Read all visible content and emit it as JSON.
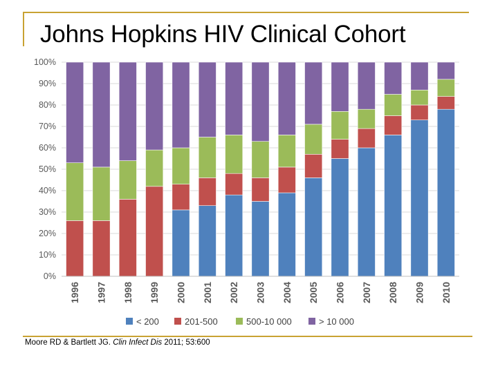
{
  "slide": {
    "title": "Johns Hopkins HIV Clinical Cohort",
    "reference_authors": "Moore RD & Bartlett JG. ",
    "reference_journal": "Clin Infect Dis",
    "reference_details": " 2011; 53:600"
  },
  "colors": {
    "rule": "#c8a232",
    "series": [
      "#4f81bd",
      "#c0504d",
      "#9bbb59",
      "#8064a2"
    ]
  },
  "chart_data": {
    "type": "bar",
    "stacked": true,
    "title": "",
    "xlabel": "",
    "ylabel": "",
    "ylim": [
      0,
      100
    ],
    "y_ticks": [
      "0%",
      "10%",
      "20%",
      "30%",
      "40%",
      "50%",
      "60%",
      "70%",
      "80%",
      "90%",
      "100%"
    ],
    "categories": [
      "1996",
      "1997",
      "1998",
      "1999",
      "2000",
      "2001",
      "2002",
      "2003",
      "2004",
      "2005",
      "2006",
      "2007",
      "2008",
      "2009",
      "2010"
    ],
    "series": [
      {
        "name": "< 200",
        "values": [
          0,
          0,
          0,
          0,
          31,
          33,
          38,
          35,
          39,
          46,
          55,
          60,
          66,
          73,
          78
        ]
      },
      {
        "name": "201-500",
        "values": [
          26,
          26,
          36,
          42,
          12,
          13,
          10,
          11,
          12,
          11,
          9,
          9,
          9,
          7,
          6
        ]
      },
      {
        "name": "500-10 000",
        "values": [
          27,
          25,
          18,
          17,
          17,
          19,
          18,
          17,
          15,
          14,
          13,
          9,
          10,
          7,
          8
        ]
      },
      {
        "name": "> 10 000",
        "values": [
          47,
          49,
          46,
          41,
          40,
          35,
          34,
          37,
          34,
          29,
          23,
          22,
          15,
          13,
          8
        ]
      }
    ],
    "legend_position": "bottom",
    "grid": true
  }
}
